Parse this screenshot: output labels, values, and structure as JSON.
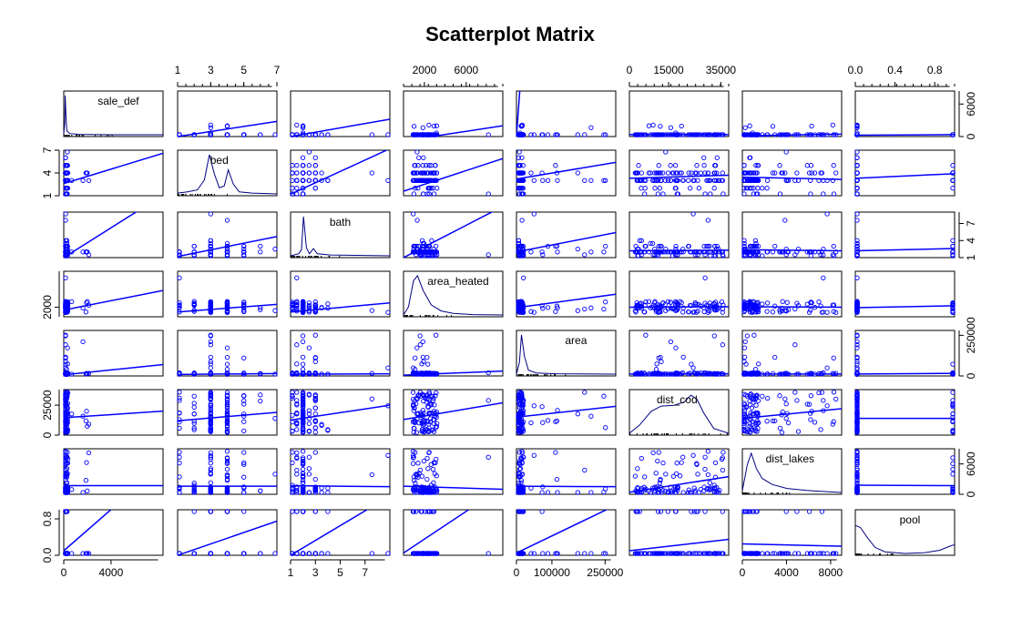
{
  "colors": {
    "points": "#0000ff",
    "lines": "#0000ff",
    "density": "#000080",
    "axes": "#000000"
  },
  "chart_data": {
    "type": "scatter",
    "title": "Scatterplot Matrix",
    "variables": [
      "sale_def",
      "bed",
      "bath",
      "area_heated",
      "area",
      "dist_cod",
      "dist_lakes",
      "pool"
    ],
    "ranges": {
      "sale_def": [
        0,
        8400
      ],
      "bed": [
        1,
        7
      ],
      "bath": [
        1,
        9
      ],
      "area_heated": [
        0,
        9500
      ],
      "area": [
        0,
        280000
      ],
      "dist_cod": [
        0,
        38000
      ],
      "dist_lakes": [
        0,
        9000
      ],
      "pool": [
        0,
        1
      ]
    },
    "axes": {
      "top": [
        {
          "var": "bed",
          "ticks": [
            "1",
            "3",
            "5",
            "7"
          ]
        },
        {
          "var": "area_heated",
          "ticks": [
            "2000",
            "6000"
          ]
        },
        {
          "var": "dist_cod",
          "ticks": [
            "0",
            "15000",
            "35000"
          ]
        },
        {
          "var": "pool",
          "ticks": [
            "0.0",
            "0.4",
            "0.8"
          ]
        }
      ],
      "bottom": [
        {
          "var": "sale_def",
          "ticks": [
            "0",
            "4000"
          ]
        },
        {
          "var": "bath",
          "ticks": [
            "1",
            "3",
            "5",
            "7"
          ]
        },
        {
          "var": "area",
          "ticks": [
            "0",
            "100000",
            "250000"
          ]
        },
        {
          "var": "dist_lakes",
          "ticks": [
            "0",
            "4000",
            "8000"
          ]
        }
      ],
      "left": [
        {
          "var": "bed",
          "ticks": [
            "1",
            "4",
            "7"
          ]
        },
        {
          "var": "area_heated",
          "ticks": [
            "2000"
          ]
        },
        {
          "var": "dist_cod",
          "ticks": [
            "0",
            "25000"
          ]
        },
        {
          "var": "pool",
          "ticks": [
            "0.0",
            "0.8"
          ]
        }
      ],
      "right": [
        {
          "var": "sale_def",
          "ticks": [
            "0",
            "6000"
          ]
        },
        {
          "var": "bath",
          "ticks": [
            "1",
            "4",
            "7"
          ]
        },
        {
          "var": "area",
          "ticks": [
            "0",
            "250000"
          ]
        },
        {
          "var": "dist_lakes",
          "ticks": [
            "0",
            "6000"
          ]
        }
      ]
    },
    "tick_values": {
      "sale_def": [
        0,
        4000,
        6000
      ],
      "bed": [
        1,
        3,
        5,
        7,
        4
      ],
      "bath": [
        1,
        3,
        5,
        7,
        4
      ],
      "area_heated": [
        2000,
        6000
      ],
      "area": [
        0,
        100000,
        250000
      ],
      "dist_cod": [
        0,
        15000,
        35000,
        25000
      ],
      "dist_lakes": [
        0,
        4000,
        8000,
        6000
      ],
      "pool": [
        0.0,
        0.4,
        0.8
      ]
    },
    "fit_lines": {
      "bed|sale_def": [
        0,
        2800
      ],
      "bath|sale_def": [
        0,
        3200
      ],
      "area_heated|sale_def": [
        -800,
        2000
      ],
      "area|sale_def": [
        100,
        250000
      ],
      "dist_cod|sale_def": [
        350,
        350
      ],
      "dist_lakes|sale_def": [
        150,
        450
      ],
      "pool|sale_def": [
        250,
        350
      ],
      "sale_def|bed": [
        2.6,
        6.6
      ],
      "bath|bed": [
        1.2,
        7.2
      ],
      "area_heated|bed": [
        1.6,
        5.9
      ],
      "area|bed": [
        3.2,
        5.4
      ],
      "dist_cod|bed": [
        3.3,
        3.7
      ],
      "dist_lakes|bed": [
        3.45,
        3.15
      ],
      "pool|bed": [
        3.3,
        3.9
      ],
      "sale_def|bath": [
        1.0,
        12.0
      ],
      "bed|bath": [
        1.2,
        4.7
      ],
      "area_heated|bath": [
        1.0,
        10.0
      ],
      "area|bath": [
        2.0,
        5.4
      ],
      "dist_cod|bath": [
        2.2,
        2.3
      ],
      "dist_lakes|bath": [
        2.4,
        2.2
      ],
      "pool|bath": [
        2.2,
        2.6
      ],
      "sale_def|area_heated": [
        1400,
        5500
      ],
      "bed|area_heated": [
        1000,
        2600
      ],
      "bath|area_heated": [
        1000,
        2900
      ],
      "area|area_heated": [
        1900,
        4700
      ],
      "dist_cod|area_heated": [
        2000,
        2100
      ],
      "dist_lakes|area_heated": [
        2100,
        2000
      ],
      "pool|area_heated": [
        1900,
        2300
      ],
      "sale_def|area": [
        7000,
        70000
      ],
      "bed|area": [
        9000,
        15000
      ],
      "bath|area": [
        11000,
        13000
      ],
      "area_heated|area": [
        5000,
        30000
      ],
      "dist_cod|area": [
        12000,
        13000
      ],
      "dist_lakes|area": [
        12000,
        12000
      ],
      "pool|area": [
        12000,
        16000
      ],
      "sale_def|dist_cod": [
        14500,
        20000
      ],
      "bed|dist_cod": [
        12000,
        19000
      ],
      "bath|dist_cod": [
        12500,
        25000
      ],
      "area_heated|dist_cod": [
        13000,
        27000
      ],
      "area|dist_cod": [
        15000,
        24000
      ],
      "dist_lakes|dist_cod": [
        14000,
        22000
      ],
      "pool|dist_cod": [
        14000,
        14000
      ],
      "sale_def|dist_lakes": [
        1700,
        1700
      ],
      "bed|dist_lakes": [
        1600,
        1600
      ],
      "bath|dist_lakes": [
        1700,
        1500
      ],
      "area_heated|dist_lakes": [
        1600,
        1000
      ],
      "area|dist_lakes": [
        1600,
        1500
      ],
      "dist_cod|dist_lakes": [
        400,
        3500
      ],
      "pool|dist_lakes": [
        1800,
        1700
      ],
      "sale_def|pool": [
        0.1,
        2.0
      ],
      "bed|pool": [
        0.0,
        0.75
      ],
      "bath|pool": [
        0.0,
        1.3
      ],
      "area_heated|pool": [
        0.05,
        1.5
      ],
      "area|pool": [
        0.05,
        1.1
      ],
      "dist_cod|pool": [
        0.1,
        0.35
      ],
      "dist_lakes|pool": [
        0.25,
        0.2
      ],
      "pool|pool": [
        0.2,
        0.2
      ]
    }
  }
}
